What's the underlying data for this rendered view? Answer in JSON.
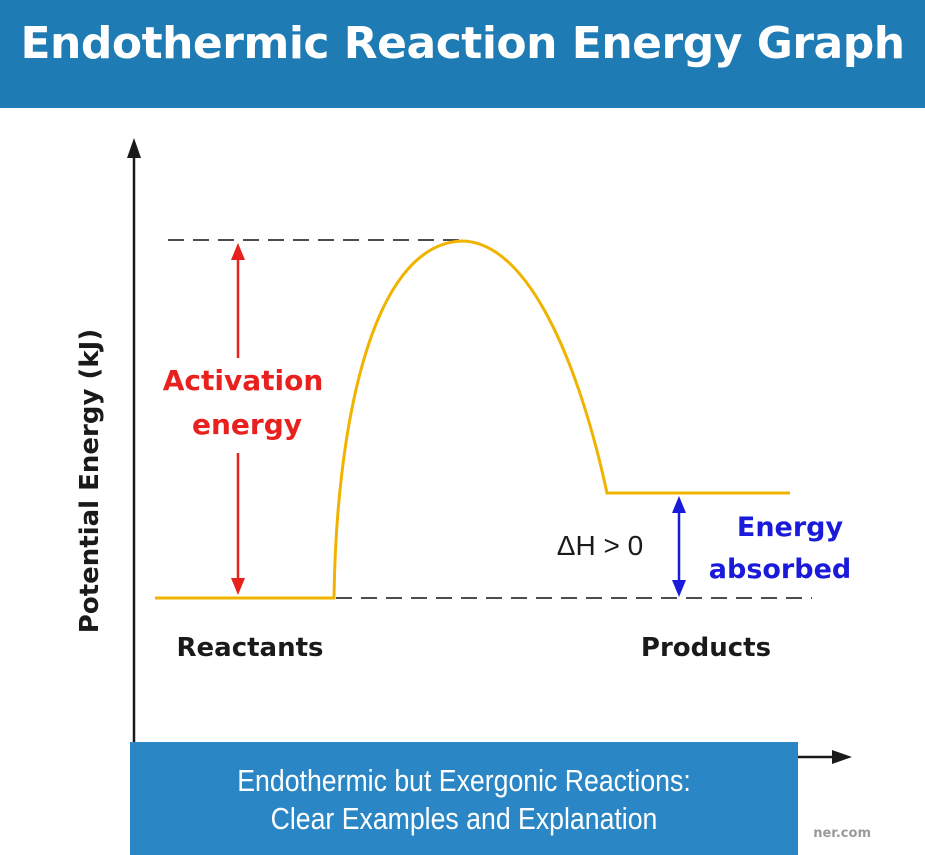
{
  "banner": {
    "title": "Endothermic Reaction Energy Graph"
  },
  "diagram": {
    "y_axis_label": "Potential Energy (kJ)",
    "activation_label_line1": "Activation",
    "activation_label_line2": "energy",
    "delta_h_label": "ΔH > 0",
    "energy_label_line1": "Energy",
    "energy_label_line2": "absorbed",
    "reactants_label": "Reactants",
    "products_label": "Products",
    "colors": {
      "curve": "#f0b400",
      "activation": "#e8211f",
      "energy_absorbed": "#1a1adb",
      "axis": "#1a1a1a",
      "dashed": "#333333"
    }
  },
  "caption": {
    "line1": "Endothermic but Exergonic Reactions:",
    "line2": "Clear Examples and Explanation"
  },
  "watermark": "ner.com"
}
